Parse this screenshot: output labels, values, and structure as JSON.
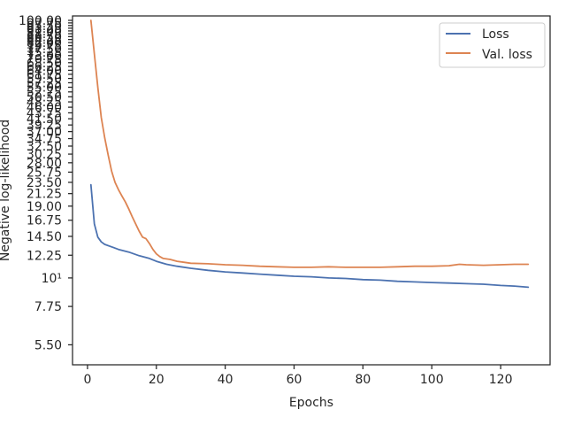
{
  "chart_data": {
    "type": "line",
    "title": "",
    "xlabel": "Epochs",
    "ylabel": "Negative log-likelihood",
    "xlim": [
      -4.35,
      134.35
    ],
    "xticks": [
      0,
      20,
      40,
      60,
      80,
      100,
      120
    ],
    "y_scale": "log",
    "ylim": [
      4.6,
      100.0
    ],
    "ytick_labels": [
      "5.50",
      "7.75",
      "10¹",
      "12.25",
      "14.50",
      "16.75",
      "19.00",
      "21.25",
      "23.50",
      "25.75",
      "28.00",
      "30.25",
      "32.50",
      "34.75",
      "37.00",
      "39.25",
      "41.50",
      "43.75",
      "46.00",
      "48.25",
      "50.50",
      "52.75",
      "55.00",
      "57.25",
      "59.50",
      "61.75",
      "64.00",
      "66.25",
      "68.50",
      "70.75",
      "73.00",
      "75.25",
      "77.50",
      "79.75",
      "82.00",
      "84.25",
      "86.50",
      "88.75",
      "91.00",
      "93.25",
      "95.50",
      "97.75",
      "100.00"
    ],
    "legend": {
      "position": "top-right"
    },
    "grid": false,
    "series": [
      {
        "name": "Loss",
        "color": "#4c72b0",
        "points": [
          [
            1,
            23.0
          ],
          [
            2,
            16.2
          ],
          [
            3,
            14.4
          ],
          [
            4,
            13.8
          ],
          [
            5,
            13.5
          ],
          [
            7,
            13.2
          ],
          [
            9,
            12.9
          ],
          [
            12,
            12.6
          ],
          [
            15,
            12.2
          ],
          [
            18,
            11.9
          ],
          [
            20,
            11.6
          ],
          [
            23,
            11.3
          ],
          [
            26,
            11.1
          ],
          [
            30,
            10.9
          ],
          [
            35,
            10.7
          ],
          [
            40,
            10.55
          ],
          [
            45,
            10.45
          ],
          [
            50,
            10.35
          ],
          [
            55,
            10.25
          ],
          [
            60,
            10.15
          ],
          [
            65,
            10.1
          ],
          [
            70,
            10.0
          ],
          [
            75,
            9.95
          ],
          [
            80,
            9.85
          ],
          [
            85,
            9.8
          ],
          [
            90,
            9.7
          ],
          [
            95,
            9.65
          ],
          [
            100,
            9.6
          ],
          [
            105,
            9.55
          ],
          [
            110,
            9.5
          ],
          [
            115,
            9.45
          ],
          [
            120,
            9.35
          ],
          [
            124,
            9.3
          ],
          [
            128,
            9.2
          ]
        ]
      },
      {
        "name": "Val. loss",
        "color": "#dd8452",
        "points": [
          [
            1,
            100.0
          ],
          [
            2,
            74.0
          ],
          [
            3,
            55.0
          ],
          [
            4,
            42.0
          ],
          [
            5,
            35.0
          ],
          [
            6,
            30.0
          ],
          [
            7,
            26.0
          ],
          [
            8,
            23.5
          ],
          [
            9,
            22.0
          ],
          [
            10,
            20.8
          ],
          [
            11,
            19.7
          ],
          [
            12,
            18.5
          ],
          [
            13,
            17.3
          ],
          [
            14,
            16.2
          ],
          [
            15,
            15.2
          ],
          [
            16,
            14.4
          ],
          [
            17,
            14.2
          ],
          [
            18,
            13.6
          ],
          [
            19,
            12.9
          ],
          [
            20,
            12.4
          ],
          [
            21,
            12.1
          ],
          [
            22,
            11.9
          ],
          [
            24,
            11.8
          ],
          [
            26,
            11.6
          ],
          [
            28,
            11.5
          ],
          [
            30,
            11.4
          ],
          [
            35,
            11.35
          ],
          [
            40,
            11.25
          ],
          [
            45,
            11.2
          ],
          [
            50,
            11.1
          ],
          [
            55,
            11.05
          ],
          [
            60,
            11.0
          ],
          [
            65,
            11.0
          ],
          [
            70,
            11.05
          ],
          [
            75,
            11.0
          ],
          [
            80,
            11.0
          ],
          [
            85,
            11.0
          ],
          [
            90,
            11.05
          ],
          [
            95,
            11.1
          ],
          [
            100,
            11.1
          ],
          [
            105,
            11.15
          ],
          [
            108,
            11.3
          ],
          [
            110,
            11.25
          ],
          [
            115,
            11.2
          ],
          [
            120,
            11.25
          ],
          [
            124,
            11.3
          ],
          [
            128,
            11.3
          ]
        ]
      }
    ]
  }
}
